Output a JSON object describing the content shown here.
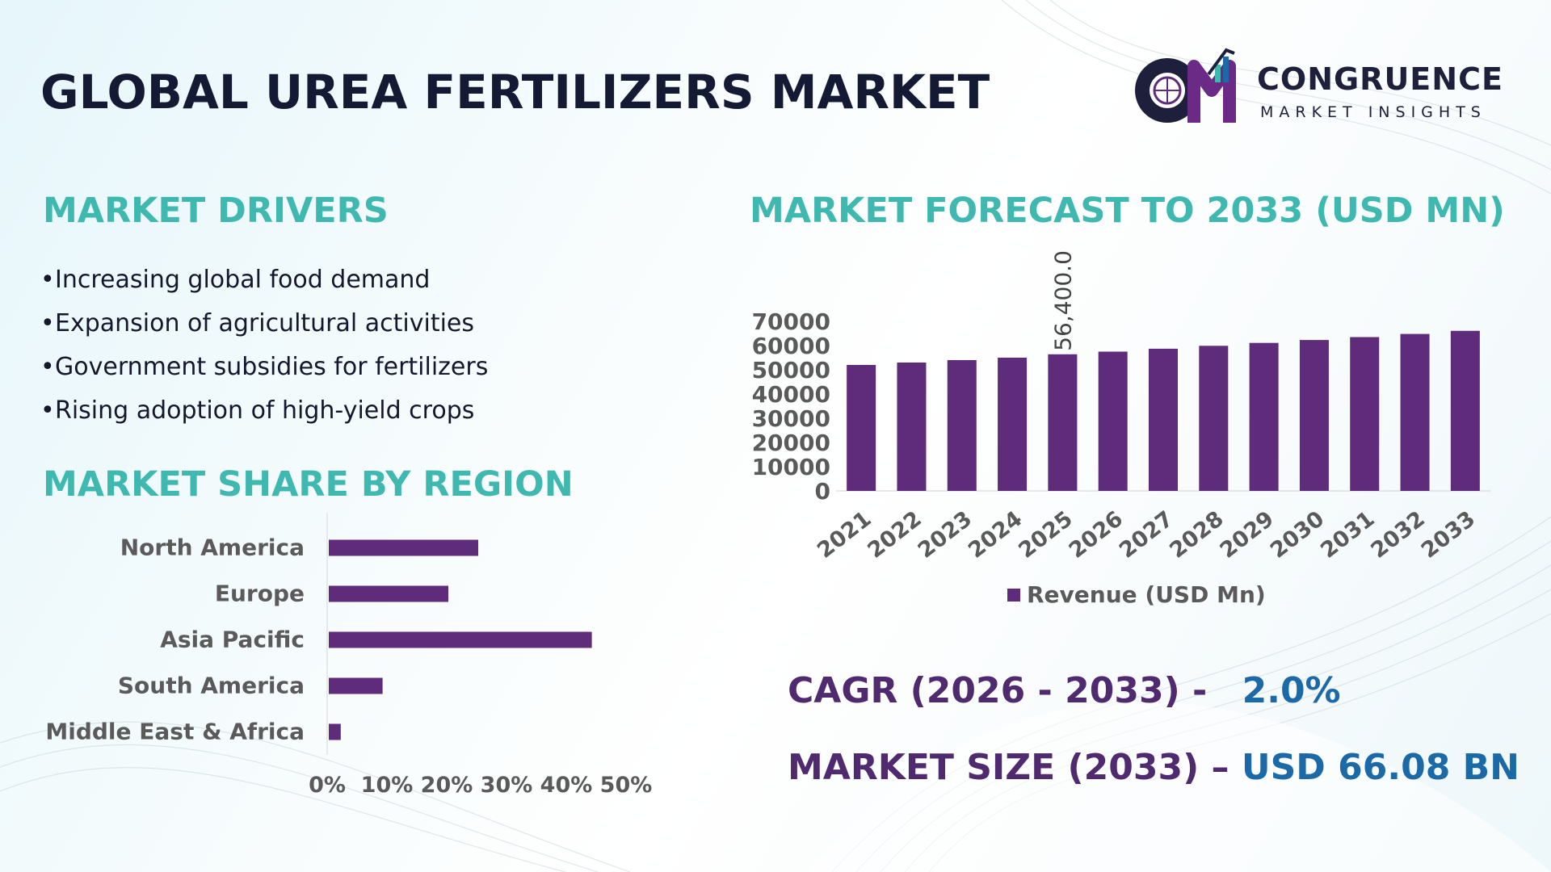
{
  "title": "GLOBAL UREA FERTILIZERS MARKET",
  "logo": {
    "word": "CONGRUENCE",
    "sub": "MARKET INSIGHTS"
  },
  "drivers": {
    "heading": "MARKET DRIVERS",
    "items": [
      "Increasing global food demand",
      "Expansion of agricultural activities",
      "Government subsidies for fertilizers",
      "Rising adoption of high-yield crops"
    ]
  },
  "region": {
    "heading": "MARKET SHARE BY REGION"
  },
  "forecast": {
    "heading": "MARKET FORECAST TO 2033 (USD MN)"
  },
  "kpis": {
    "cagr_label": "CAGR (2026 - 2033) -",
    "cagr_value": "2.0%",
    "size_label": "MARKET SIZE (2033) –",
    "size_value": "USD 66.08 BN"
  },
  "colors": {
    "bar": "#5e2c7a",
    "teal": "#3fb9b0",
    "title": "#141a33",
    "kpi_label": "#4f2a6e",
    "kpi_value": "#1c69a8"
  },
  "chart_data": [
    {
      "type": "bar",
      "orientation": "horizontal",
      "categories": [
        "North America",
        "Europe",
        "Asia Pacific",
        "South America",
        "Middle East & Africa"
      ],
      "values": [
        25,
        20,
        44,
        9,
        2
      ],
      "xlim": [
        0,
        50
      ],
      "x_ticks": [
        "0%",
        "10%",
        "20%",
        "30%",
        "40%",
        "50%"
      ],
      "grid": false
    },
    {
      "type": "bar",
      "categories": [
        "2021",
        "2022",
        "2023",
        "2024",
        "2025",
        "2026",
        "2027",
        "2028",
        "2029",
        "2030",
        "2031",
        "2032",
        "2033"
      ],
      "series": [
        {
          "name": "Revenue (USD Mn)",
          "values": [
            52000,
            53000,
            54000,
            55000,
            56400,
            57500,
            58700,
            59900,
            61100,
            62300,
            63500,
            64800,
            66080
          ]
        }
      ],
      "data_labels": [
        {
          "index": 4,
          "text": "56,400.0"
        }
      ],
      "ylim": [
        0,
        70000
      ],
      "y_ticks": [
        "0",
        "10000",
        "20000",
        "30000",
        "40000",
        "50000",
        "60000",
        "70000"
      ],
      "legend": "bottom",
      "grid": false
    }
  ]
}
